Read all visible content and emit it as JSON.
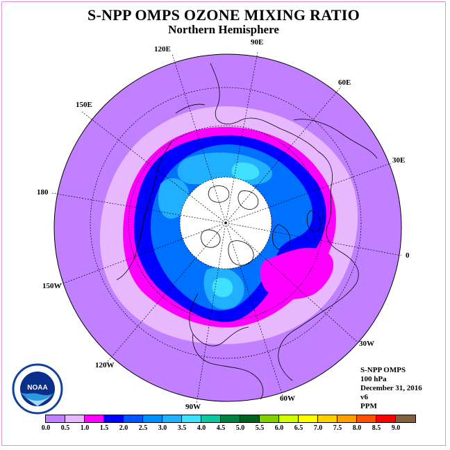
{
  "title": "S-NPP OMPS OZONE MIXING RATIO",
  "subtitle": "Northern Hemisphere",
  "longitude_labels": [
    "90E",
    "60E",
    "30E",
    "0",
    "30W",
    "60W",
    "90W",
    "120W",
    "150W",
    "180",
    "150E",
    "120E"
  ],
  "info": {
    "instrument": "S-NPP OMPS",
    "level": "100 hPa",
    "date": "December 31, 2016",
    "version": "v6",
    "units": "PPM"
  },
  "logo": {
    "icon": "noaa-logo-icon",
    "text": "NOAA"
  },
  "colorbar": {
    "colors": [
      "#c080ff",
      "#e8b8ff",
      "#ff00ff",
      "#0000ff",
      "#0055ff",
      "#0090ff",
      "#20b0ff",
      "#40e0ff",
      "#10c8a0",
      "#008040",
      "#006020",
      "#80d000",
      "#d0ff00",
      "#ffff00",
      "#ffd000",
      "#ffa000",
      "#ff5000",
      "#ff0000",
      "#806040"
    ],
    "ticks": [
      "0.0",
      "0.5",
      "1.0",
      "1.5",
      "2.0",
      "2.5",
      "3.0",
      "3.5",
      "4.0",
      "4.5",
      "5.0",
      "5.5",
      "6.0",
      "6.5",
      "7.0",
      "7.5",
      "8.0",
      "8.5",
      "9.0"
    ]
  },
  "colors": {
    "background_field": "#c080ff",
    "lavender": "#e8b8ff",
    "magenta": "#ff00ff",
    "dark_blue": "#0000ff",
    "mid_blue": "#0070ff",
    "light_blue": "#20b0ff",
    "cyan": "#40e0ff",
    "pole_no_data": "#ffffff"
  }
}
